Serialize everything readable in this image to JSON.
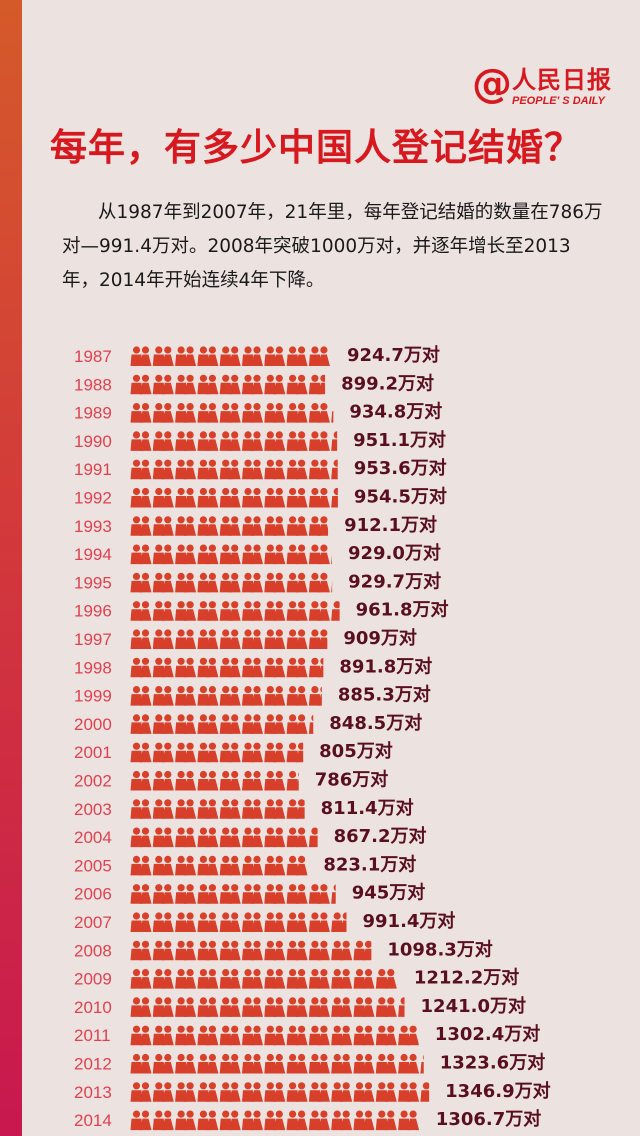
{
  "logo": {
    "at_symbol": "@",
    "name": "人民日报",
    "subtitle": "PEOPLE' S DAILY",
    "color": "#d7191f"
  },
  "title": "每年，有多少中国人登记结婚？",
  "intro": "从1987年到2007年，21年里，每年登记结婚的数量在786万对—991.4万对。2008年突破1000万对，并逐年增长至2013年，2014年开始连续4年下降。",
  "colors": {
    "background": "#ece3e1",
    "year_text": "#e0414f",
    "value_text": "#5a0f1e",
    "icon_top": "#d8402a",
    "icon_bottom": "#c8174d"
  },
  "chart_data": {
    "type": "bar",
    "orientation": "horizontal",
    "mark": "pictogram-couple-icons",
    "categories": [
      "1987",
      "1988",
      "1989",
      "1990",
      "1991",
      "1992",
      "1993",
      "1994",
      "1995",
      "1996",
      "1997",
      "1998",
      "1999",
      "2000",
      "2001",
      "2002",
      "2003",
      "2004",
      "2005",
      "2006",
      "2007",
      "2008",
      "2009",
      "2010",
      "2011",
      "2012",
      "2013",
      "2014"
    ],
    "values": [
      924.7,
      899.2,
      934.8,
      951.1,
      953.6,
      954.5,
      912.1,
      929.0,
      929.7,
      961.8,
      909,
      891.8,
      885.3,
      848.5,
      805,
      786,
      811.4,
      867.2,
      823.1,
      945,
      991.4,
      1098.3,
      1212.2,
      1241.0,
      1302.4,
      1323.6,
      1346.9,
      1306.7
    ],
    "value_labels": [
      "924.7万对",
      "899.2万对",
      "934.8万对",
      "951.1万对",
      "953.6万对",
      "954.5万对",
      "912.1万对",
      "929.0万对",
      "929.7万对",
      "961.8万对",
      "909万对",
      "891.8万对",
      "885.3万对",
      "848.5万对",
      "805万对",
      "786万对",
      "811.4万对",
      "867.2万对",
      "823.1万对",
      "945万对",
      "991.4万对",
      "1098.3万对",
      "1212.2万对",
      "1241.0万对",
      "1302.4万对",
      "1323.6万对",
      "1346.9万对",
      "1306.7万对"
    ],
    "unit": "万对",
    "grid": false,
    "legend": "none"
  }
}
